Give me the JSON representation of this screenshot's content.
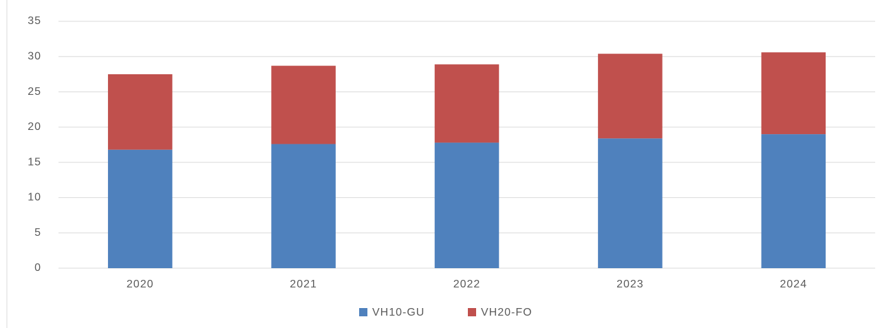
{
  "chart_data": {
    "type": "stacked_bar",
    "categories": [
      "2020",
      "2021",
      "2022",
      "2023",
      "2024"
    ],
    "series": [
      {
        "name": "VH10-GU",
        "color": "#4f81bd",
        "values": [
          16.8,
          17.6,
          17.8,
          18.4,
          19.0
        ]
      },
      {
        "name": "VH20-FO",
        "color": "#c0504d",
        "values": [
          10.7,
          11.1,
          11.1,
          12.0,
          11.6
        ]
      }
    ],
    "ylim": [
      0,
      35
    ],
    "yticks": [
      0,
      5,
      10,
      15,
      20,
      25,
      30,
      35
    ],
    "grid": true,
    "legend": "bottom"
  }
}
